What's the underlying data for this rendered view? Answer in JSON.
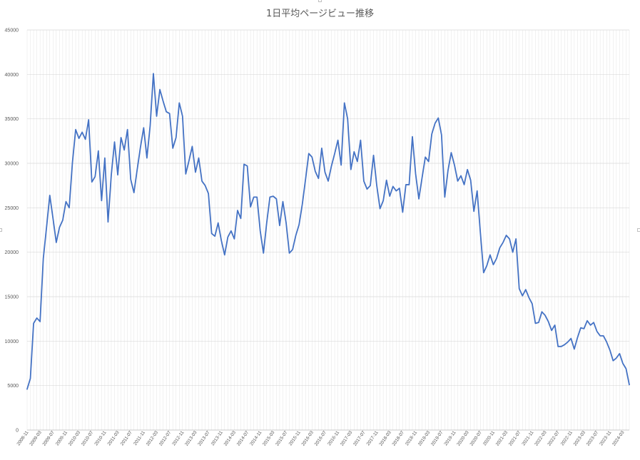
{
  "chart_data": {
    "type": "line",
    "title": "1日平均ページビュー推移",
    "xlabel": "",
    "ylabel": "",
    "ylim": [
      0,
      45000
    ],
    "yticks": [
      0,
      5000,
      10000,
      15000,
      20000,
      25000,
      30000,
      35000,
      40000,
      45000
    ],
    "grid": true,
    "legend": "none",
    "color": "#4472c4",
    "x": [
      "2008-11",
      "2008-12",
      "2009-01",
      "2009-02",
      "2009-03",
      "2009-04",
      "2009-05",
      "2009-06",
      "2009-07",
      "2009-08",
      "2009-09",
      "2009-10",
      "2009-11",
      "2009-12",
      "2010-01",
      "2010-02",
      "2010-03",
      "2010-04",
      "2010-05",
      "2010-06",
      "2010-07",
      "2010-08",
      "2010-09",
      "2010-10",
      "2010-11",
      "2010-12",
      "2011-01",
      "2011-02",
      "2011-03",
      "2011-04",
      "2011-05",
      "2011-06",
      "2011-07",
      "2011-08",
      "2011-09",
      "2011-10",
      "2011-11",
      "2011-12",
      "2012-01",
      "2012-02",
      "2012-03",
      "2012-04",
      "2012-05",
      "2012-06",
      "2012-07",
      "2012-08",
      "2012-09",
      "2012-10",
      "2012-11",
      "2012-12",
      "2013-01",
      "2013-02",
      "2013-03",
      "2013-04",
      "2013-05",
      "2013-06",
      "2013-07",
      "2013-08",
      "2013-09",
      "2013-10",
      "2013-11",
      "2013-12",
      "2014-01",
      "2014-02",
      "2014-03",
      "2014-04",
      "2014-05",
      "2014-06",
      "2014-07",
      "2014-08",
      "2014-09",
      "2014-10",
      "2014-11",
      "2014-12",
      "2015-01",
      "2015-02",
      "2015-03",
      "2015-04",
      "2015-05",
      "2015-06",
      "2015-07",
      "2015-08",
      "2015-09",
      "2015-10",
      "2015-11",
      "2015-12",
      "2016-01",
      "2016-02",
      "2016-03",
      "2016-04",
      "2016-05",
      "2016-06",
      "2016-07",
      "2016-08",
      "2016-09",
      "2016-10",
      "2016-11",
      "2016-12",
      "2017-01",
      "2017-02",
      "2017-03",
      "2017-04",
      "2017-05",
      "2017-06",
      "2017-07",
      "2017-08",
      "2017-09",
      "2017-10",
      "2017-11",
      "2017-12",
      "2018-01",
      "2018-02",
      "2018-03",
      "2018-04",
      "2018-05",
      "2018-06",
      "2018-07",
      "2018-08",
      "2018-09",
      "2018-10",
      "2018-11",
      "2018-12",
      "2019-01",
      "2019-02",
      "2019-03",
      "2019-04",
      "2019-05",
      "2019-06",
      "2019-07",
      "2019-08",
      "2019-09",
      "2019-10",
      "2019-11",
      "2019-12",
      "2020-01",
      "2020-02",
      "2020-03",
      "2020-04",
      "2020-05",
      "2020-06",
      "2020-07",
      "2020-08",
      "2020-09",
      "2020-10",
      "2020-11",
      "2020-12",
      "2021-01",
      "2021-02",
      "2021-03",
      "2021-04",
      "2021-05",
      "2021-06",
      "2021-07",
      "2021-08",
      "2021-09",
      "2021-10",
      "2021-11",
      "2021-12",
      "2022-01",
      "2022-02",
      "2022-03",
      "2022-04",
      "2022-05",
      "2022-06",
      "2022-07",
      "2022-08",
      "2022-09",
      "2022-10",
      "2022-11",
      "2022-12",
      "2023-01",
      "2023-02",
      "2023-03",
      "2023-04",
      "2023-05",
      "2023-06",
      "2023-07",
      "2023-08",
      "2023-09",
      "2023-10",
      "2023-11",
      "2023-12",
      "2024-01",
      "2024-02",
      "2024-03",
      "2024-04",
      "2024-05"
    ],
    "xtick_labels": [
      "2008-11",
      "2009-03",
      "2009-07",
      "2009-11",
      "2010-03",
      "2010-07",
      "2010-11",
      "2011-03",
      "2011-07",
      "2011-11",
      "2012-03",
      "2012-07",
      "2012-11",
      "2013-03",
      "2013-07",
      "2013-11",
      "2014-03",
      "2014-07",
      "2014-11",
      "2015-03",
      "2015-07",
      "2015-11",
      "2016-03",
      "2016-07",
      "2016-11",
      "2017-03",
      "2017-07",
      "2017-11",
      "2018-03",
      "2018-07",
      "2018-11",
      "2019-03",
      "2019-07",
      "2019-11",
      "2020-03",
      "2020-07",
      "2020-11",
      "2021-03",
      "2021-07",
      "2021-11",
      "2022-03",
      "2022-07",
      "2022-11",
      "2023-03",
      "2023-07",
      "2023-11",
      "2024-03"
    ],
    "values": [
      4600,
      5800,
      12000,
      12600,
      12200,
      19300,
      22800,
      26400,
      23800,
      21100,
      22800,
      23600,
      25700,
      25000,
      30100,
      33800,
      32800,
      33500,
      32700,
      34900,
      27900,
      28500,
      31400,
      25800,
      30600,
      23400,
      28700,
      32400,
      28700,
      32900,
      31500,
      33800,
      28200,
      26700,
      29300,
      31800,
      34000,
      30600,
      34200,
      40100,
      35300,
      38300,
      37000,
      35800,
      35600,
      31700,
      32900,
      36800,
      35300,
      28800,
      30300,
      31900,
      29000,
      30600,
      28000,
      27500,
      26600,
      22100,
      21800,
      23300,
      21300,
      19700,
      21700,
      22400,
      21500,
      24700,
      23800,
      29900,
      29700,
      25100,
      26200,
      26200,
      22400,
      19900,
      23300,
      26200,
      26300,
      26000,
      23000,
      25700,
      23300,
      19900,
      20300,
      21900,
      23100,
      25400,
      28200,
      31100,
      30700,
      29100,
      28300,
      31700,
      29000,
      28000,
      29700,
      31100,
      32600,
      29800,
      36800,
      35000,
      29300,
      31300,
      30200,
      32600,
      28000,
      27100,
      27500,
      30900,
      27500,
      24900,
      25800,
      28100,
      26300,
      27400,
      26900,
      27200,
      24500,
      27600,
      27600,
      33000,
      28800,
      26000,
      28400,
      30700,
      30200,
      33300,
      34500,
      35100,
      33200,
      26200,
      29200,
      31200,
      29800,
      28000,
      28600,
      27600,
      29300,
      28100,
      24600,
      26900,
      22200,
      17700,
      18500,
      19700,
      18600,
      19300,
      20500,
      21100,
      21900,
      21500,
      20000,
      21500,
      15900,
      15100,
      15800,
      14900,
      14200,
      12000,
      12100,
      13300,
      12900,
      12200,
      11200,
      11800,
      9400,
      9400,
      9600,
      9900,
      10300,
      9100,
      10400,
      11500,
      11400,
      12300,
      11800,
      12100,
      11100,
      10600,
      10600,
      9900,
      9000,
      7800,
      8100,
      8600,
      7500,
      6900,
      5100
    ]
  }
}
